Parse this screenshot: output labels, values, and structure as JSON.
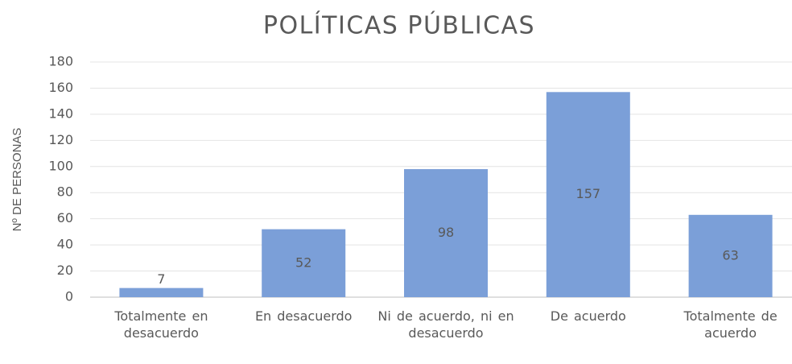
{
  "chart_data": {
    "type": "bar",
    "title": "POLÍTICAS PÚBLICAS",
    "y_label": "Nº DE PERSONAS",
    "categories": [
      "Totalmente en desacuerdo",
      "En desacuerdo",
      "Ni de acuerdo, ni en desacuerdo",
      "De acuerdo",
      "Totalmente de acuerdo"
    ],
    "values": [
      7,
      52,
      98,
      157,
      63
    ],
    "color": "#7b9fd8",
    "ylim": [
      0,
      180
    ],
    "yticks": [
      0,
      20,
      40,
      60,
      80,
      100,
      120,
      140,
      160,
      180
    ],
    "grid": true
  }
}
